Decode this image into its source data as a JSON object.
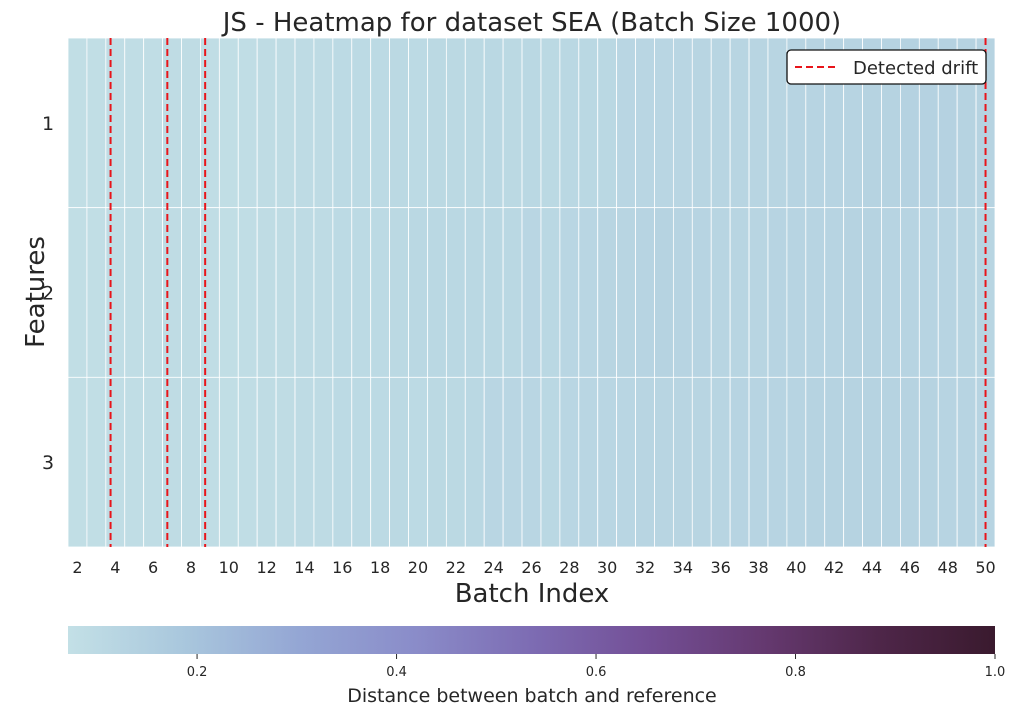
{
  "chart_data": {
    "type": "heatmap",
    "title": "JS - Heatmap for dataset SEA (Batch Size 1000)",
    "xlabel": "Batch Index",
    "ylabel": "Features",
    "x": [
      2,
      3,
      4,
      5,
      6,
      7,
      8,
      9,
      10,
      11,
      12,
      13,
      14,
      15,
      16,
      17,
      18,
      19,
      20,
      21,
      22,
      23,
      24,
      25,
      26,
      27,
      28,
      29,
      30,
      31,
      32,
      33,
      34,
      35,
      36,
      37,
      38,
      39,
      40,
      41,
      42,
      43,
      44,
      45,
      46,
      47,
      48,
      49,
      50
    ],
    "x_tick_labels": [
      "2",
      "4",
      "6",
      "8",
      "10",
      "12",
      "14",
      "16",
      "18",
      "20",
      "22",
      "24",
      "26",
      "28",
      "30",
      "32",
      "34",
      "36",
      "38",
      "40",
      "42",
      "44",
      "46",
      "48",
      "50"
    ],
    "y": [
      "1",
      "2",
      "3"
    ],
    "values": [
      [
        0.08,
        0.08,
        0.085,
        0.085,
        0.085,
        0.09,
        0.09,
        0.085,
        0.08,
        0.085,
        0.09,
        0.09,
        0.095,
        0.095,
        0.1,
        0.1,
        0.1,
        0.105,
        0.1,
        0.105,
        0.105,
        0.105,
        0.11,
        0.105,
        0.11,
        0.105,
        0.11,
        0.11,
        0.11,
        0.115,
        0.115,
        0.115,
        0.115,
        0.12,
        0.12,
        0.12,
        0.12,
        0.12,
        0.125,
        0.125,
        0.125,
        0.125,
        0.13,
        0.13,
        0.135,
        0.135,
        0.135,
        0.13,
        0.13
      ],
      [
        0.08,
        0.08,
        0.085,
        0.085,
        0.085,
        0.09,
        0.09,
        0.085,
        0.08,
        0.085,
        0.09,
        0.09,
        0.095,
        0.095,
        0.1,
        0.1,
        0.1,
        0.105,
        0.11,
        0.11,
        0.11,
        0.11,
        0.11,
        0.11,
        0.115,
        0.11,
        0.115,
        0.115,
        0.12,
        0.12,
        0.125,
        0.13,
        0.125,
        0.125,
        0.12,
        0.12,
        0.12,
        0.125,
        0.125,
        0.125,
        0.125,
        0.13,
        0.13,
        0.125,
        0.125,
        0.125,
        0.125,
        0.12,
        0.12
      ],
      [
        0.08,
        0.08,
        0.085,
        0.085,
        0.085,
        0.09,
        0.09,
        0.085,
        0.08,
        0.085,
        0.09,
        0.09,
        0.095,
        0.095,
        0.1,
        0.1,
        0.1,
        0.105,
        0.1,
        0.105,
        0.105,
        0.11,
        0.115,
        0.115,
        0.115,
        0.11,
        0.115,
        0.115,
        0.115,
        0.115,
        0.12,
        0.12,
        0.12,
        0.12,
        0.12,
        0.125,
        0.125,
        0.125,
        0.125,
        0.13,
        0.13,
        0.13,
        0.13,
        0.13,
        0.13,
        0.13,
        0.125,
        0.125,
        0.125
      ]
    ],
    "drift_lines": [
      3.75,
      6.75,
      8.75,
      50.0
    ],
    "legend": {
      "label": "Detected drift",
      "placement": "top-right",
      "color": "#e8141a"
    },
    "colorbar": {
      "label": "Distance between batch and reference",
      "range": [
        0.0706,
        1.0
      ],
      "ticks": [
        0.2,
        0.4,
        0.6,
        0.8,
        1.0
      ],
      "tick_labels": [
        "0.2",
        "0.4",
        "0.6",
        "0.8",
        "1.0"
      ],
      "colors": [
        "#c3e0e6",
        "#a9c7dd",
        "#94a6d4",
        "#8a8cc9",
        "#7d6cb3",
        "#734f96",
        "#653970",
        "#4e2649",
        "#3a1a2e"
      ]
    }
  }
}
